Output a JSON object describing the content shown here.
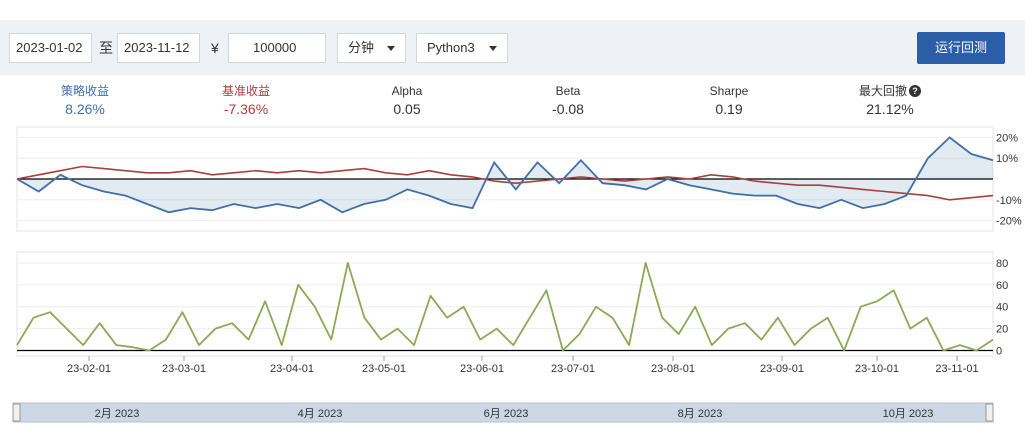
{
  "toolbar": {
    "start_date": "2023-01-02",
    "to_label": "至",
    "end_date": "2023-11-12",
    "currency_symbol": "¥",
    "capital": "100000",
    "frequency": "分钟",
    "language": "Python3",
    "run_button": "运行回测"
  },
  "stats": {
    "strategy_return": {
      "label": "策略收益",
      "value": "8.26%"
    },
    "benchmark_return": {
      "label": "基准收益",
      "value": "-7.36%"
    },
    "alpha": {
      "label": "Alpha",
      "value": "0.05"
    },
    "beta": {
      "label": "Beta",
      "value": "-0.08"
    },
    "sharpe": {
      "label": "Sharpe",
      "value": "0.19"
    },
    "max_drawdown": {
      "label": "最大回撤",
      "value": "21.12%"
    }
  },
  "colors": {
    "strategy": "#3f6fa9",
    "benchmark": "#a8403a",
    "volume": "#8aaa55",
    "run_button": "#2b5ea7"
  },
  "chart_data": [
    {
      "type": "line",
      "title": "",
      "ylabel": "",
      "ylim": [
        -25,
        25
      ],
      "y_ticks": [
        "20%",
        "10%",
        "0%",
        "-10%",
        "-20%"
      ],
      "y_tick_values": [
        20,
        10,
        0,
        -10,
        -20
      ],
      "series": [
        {
          "name": "策略收益",
          "x": [
            "2023-01-02",
            "2023-01-08",
            "2023-01-15",
            "2023-01-22",
            "2023-01-29",
            "2023-02-05",
            "2023-02-12",
            "2023-02-19",
            "2023-02-26",
            "2023-03-05",
            "2023-03-12",
            "2023-03-19",
            "2023-03-26",
            "2023-04-02",
            "2023-04-09",
            "2023-04-16",
            "2023-04-23",
            "2023-04-30",
            "2023-05-07",
            "2023-05-14",
            "2023-05-21",
            "2023-05-28",
            "2023-06-04",
            "2023-06-11",
            "2023-06-18",
            "2023-06-25",
            "2023-07-02",
            "2023-07-09",
            "2023-07-16",
            "2023-07-23",
            "2023-07-30",
            "2023-08-06",
            "2023-08-13",
            "2023-08-20",
            "2023-08-27",
            "2023-09-03",
            "2023-09-10",
            "2023-09-17",
            "2023-09-24",
            "2023-10-01",
            "2023-10-08",
            "2023-10-15",
            "2023-10-22",
            "2023-10-29",
            "2023-11-05",
            "2023-11-12"
          ],
          "values": [
            0,
            -6,
            2,
            -3,
            -6,
            -8,
            -12,
            -16,
            -14,
            -15,
            -12,
            -14,
            -12,
            -14,
            -10,
            -16,
            -12,
            -10,
            -5,
            -8,
            -12,
            -14,
            8,
            -5,
            8,
            -2,
            9,
            -2,
            -3,
            -5,
            0,
            -3,
            -5,
            -7,
            -8,
            -8,
            -12,
            -14,
            -10,
            -14,
            -12,
            -8,
            10,
            20,
            12,
            9
          ]
        },
        {
          "name": "基准收益",
          "x": [
            "2023-01-02",
            "2023-01-08",
            "2023-01-15",
            "2023-01-22",
            "2023-01-29",
            "2023-02-05",
            "2023-02-12",
            "2023-02-19",
            "2023-02-26",
            "2023-03-05",
            "2023-03-12",
            "2023-03-19",
            "2023-03-26",
            "2023-04-02",
            "2023-04-09",
            "2023-04-16",
            "2023-04-23",
            "2023-04-30",
            "2023-05-07",
            "2023-05-14",
            "2023-05-21",
            "2023-05-28",
            "2023-06-04",
            "2023-06-11",
            "2023-06-18",
            "2023-06-25",
            "2023-07-02",
            "2023-07-09",
            "2023-07-16",
            "2023-07-23",
            "2023-07-30",
            "2023-08-06",
            "2023-08-13",
            "2023-08-20",
            "2023-08-27",
            "2023-09-03",
            "2023-09-10",
            "2023-09-17",
            "2023-09-24",
            "2023-10-01",
            "2023-10-08",
            "2023-10-15",
            "2023-10-22",
            "2023-10-29",
            "2023-11-05",
            "2023-11-12"
          ],
          "values": [
            0,
            2,
            4,
            6,
            5,
            4,
            3,
            3,
            4,
            2,
            3,
            4,
            3,
            4,
            3,
            4,
            5,
            3,
            2,
            4,
            2,
            1,
            -1,
            -2,
            -1,
            0,
            1,
            0,
            -1,
            0,
            1,
            0,
            2,
            1,
            -1,
            -2,
            -3,
            -3,
            -4,
            -5,
            -6,
            -7,
            -8,
            -10,
            -9,
            -8
          ]
        }
      ]
    },
    {
      "type": "line",
      "title": "",
      "ylim": [
        -5,
        90
      ],
      "y_ticks": [
        "80",
        "60",
        "40",
        "20",
        "0"
      ],
      "y_tick_values": [
        80,
        60,
        40,
        20,
        0
      ],
      "x_ticks": [
        "23-02-01",
        "23-03-01",
        "23-04-01",
        "23-05-01",
        "23-06-01",
        "23-07-01",
        "23-08-01",
        "23-09-01",
        "23-10-01",
        "23-11-01"
      ],
      "series": [
        {
          "name": "",
          "values": [
            5,
            30,
            35,
            20,
            5,
            25,
            5,
            3,
            0,
            10,
            35,
            5,
            20,
            25,
            10,
            45,
            5,
            60,
            40,
            10,
            80,
            30,
            10,
            20,
            5,
            50,
            30,
            40,
            10,
            20,
            5,
            30,
            55,
            0,
            15,
            40,
            30,
            5,
            80,
            30,
            15,
            40,
            5,
            20,
            25,
            10,
            30,
            5,
            20,
            30,
            0,
            40,
            45,
            55,
            20,
            30,
            0,
            5,
            0,
            10
          ]
        }
      ]
    },
    {
      "type": "table",
      "title": "",
      "navigator_labels": [
        "2月 2023",
        "4月 2023",
        "6月 2023",
        "8月 2023",
        "10月 2023"
      ]
    }
  ]
}
